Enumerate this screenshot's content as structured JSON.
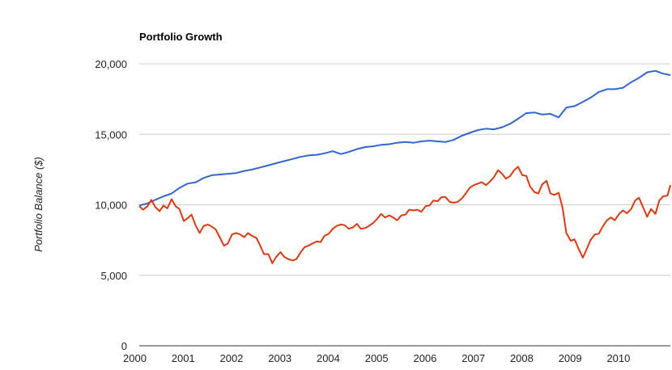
{
  "chart_data": {
    "type": "line",
    "title": "Portfolio Growth",
    "xlabel": "",
    "ylabel": "Portfolio Balance ($)",
    "ylim": [
      0,
      20000
    ],
    "yticks": [
      0,
      5000,
      10000,
      15000,
      20000
    ],
    "ytick_labels": [
      "0",
      "5,000",
      "10,000",
      "15,000",
      "20,000"
    ],
    "xticks": [
      2000,
      2001,
      2002,
      2003,
      2004,
      2005,
      2006,
      2007,
      2008,
      2009,
      2010
    ],
    "xtick_labels": [
      "2000",
      "2001",
      "2002",
      "2003",
      "2004",
      "2005",
      "2006",
      "2007",
      "2008",
      "2009",
      "2010"
    ],
    "xlim": [
      2000,
      2010.98
    ],
    "grid": true,
    "legend": "none",
    "series": [
      {
        "name": "Blue series",
        "color": "#3366cc",
        "x": [
          2000.0,
          2000.17,
          2000.33,
          2000.5,
          2000.67,
          2000.83,
          2001.0,
          2001.17,
          2001.33,
          2001.5,
          2001.67,
          2001.83,
          2002.0,
          2002.17,
          2002.33,
          2002.5,
          2002.67,
          2002.83,
          2003.0,
          2003.17,
          2003.33,
          2003.5,
          2003.67,
          2003.83,
          2004.0,
          2004.17,
          2004.33,
          2004.5,
          2004.67,
          2004.83,
          2005.0,
          2005.17,
          2005.33,
          2005.5,
          2005.67,
          2005.83,
          2006.0,
          2006.17,
          2006.33,
          2006.5,
          2006.67,
          2006.83,
          2007.0,
          2007.17,
          2007.33,
          2007.5,
          2007.67,
          2007.83,
          2008.0,
          2008.17,
          2008.33,
          2008.5,
          2008.67,
          2008.83,
          2009.0,
          2009.17,
          2009.33,
          2009.5,
          2009.67,
          2009.83,
          2010.0,
          2010.17,
          2010.33,
          2010.5,
          2010.67,
          2010.83,
          2010.98
        ],
        "values": [
          9950,
          10100,
          10350,
          10600,
          10800,
          11200,
          11500,
          11600,
          11900,
          12100,
          12150,
          12200,
          12250,
          12400,
          12500,
          12650,
          12800,
          12950,
          13100,
          13250,
          13400,
          13500,
          13550,
          13650,
          13800,
          13600,
          13750,
          13950,
          14100,
          14150,
          14250,
          14300,
          14400,
          14450,
          14400,
          14500,
          14550,
          14500,
          14450,
          14600,
          14900,
          15100,
          15300,
          15400,
          15350,
          15500,
          15750,
          16100,
          16500,
          16550,
          16400,
          16450,
          16200,
          16900,
          17000,
          17300,
          17600,
          18000,
          18200,
          18200,
          18300,
          18700,
          19000,
          19400,
          19500,
          19300,
          19200
        ]
      },
      {
        "name": "Red series",
        "color": "#dc3912",
        "x": [
          2000.0,
          2000.08,
          2000.17,
          2000.25,
          2000.33,
          2000.42,
          2000.5,
          2000.58,
          2000.67,
          2000.75,
          2000.83,
          2000.92,
          2001.0,
          2001.08,
          2001.17,
          2001.25,
          2001.33,
          2001.42,
          2001.5,
          2001.58,
          2001.67,
          2001.75,
          2001.83,
          2001.92,
          2002.0,
          2002.08,
          2002.17,
          2002.25,
          2002.33,
          2002.42,
          2002.5,
          2002.58,
          2002.67,
          2002.75,
          2002.83,
          2002.92,
          2003.0,
          2003.08,
          2003.17,
          2003.25,
          2003.33,
          2003.42,
          2003.5,
          2003.58,
          2003.67,
          2003.75,
          2003.83,
          2003.92,
          2004.0,
          2004.08,
          2004.17,
          2004.25,
          2004.33,
          2004.42,
          2004.5,
          2004.58,
          2004.67,
          2004.75,
          2004.83,
          2004.92,
          2005.0,
          2005.08,
          2005.17,
          2005.25,
          2005.33,
          2005.42,
          2005.5,
          2005.58,
          2005.67,
          2005.75,
          2005.83,
          2005.92,
          2006.0,
          2006.08,
          2006.17,
          2006.25,
          2006.33,
          2006.42,
          2006.5,
          2006.58,
          2006.67,
          2006.75,
          2006.83,
          2006.92,
          2007.0,
          2007.08,
          2007.17,
          2007.25,
          2007.33,
          2007.42,
          2007.5,
          2007.58,
          2007.67,
          2007.75,
          2007.83,
          2007.92,
          2008.0,
          2008.08,
          2008.17,
          2008.25,
          2008.33,
          2008.42,
          2008.5,
          2008.58,
          2008.67,
          2008.75,
          2008.83,
          2008.92,
          2009.0,
          2009.08,
          2009.17,
          2009.25,
          2009.33,
          2009.42,
          2009.5,
          2009.58,
          2009.67,
          2009.75,
          2009.83,
          2009.92,
          2010.0,
          2010.08,
          2010.17,
          2010.25,
          2010.33,
          2010.42,
          2010.5,
          2010.58,
          2010.67,
          2010.75,
          2010.83,
          2010.92,
          2010.98
        ],
        "values": [
          9900,
          9650,
          9900,
          10350,
          9850,
          9550,
          9950,
          9750,
          10400,
          9900,
          9700,
          8850,
          9050,
          9300,
          8500,
          8000,
          8500,
          8600,
          8450,
          8250,
          7650,
          7100,
          7250,
          7900,
          8000,
          7900,
          7700,
          8000,
          7800,
          7650,
          7100,
          6500,
          6500,
          5850,
          6300,
          6650,
          6300,
          6150,
          6050,
          6150,
          6600,
          7000,
          7100,
          7250,
          7400,
          7350,
          7800,
          7950,
          8300,
          8500,
          8600,
          8550,
          8300,
          8400,
          8650,
          8300,
          8350,
          8500,
          8700,
          9000,
          9350,
          9100,
          9250,
          9100,
          8900,
          9250,
          9300,
          9650,
          9600,
          9650,
          9500,
          9900,
          9950,
          10300,
          10250,
          10550,
          10550,
          10200,
          10150,
          10200,
          10450,
          10800,
          11200,
          11400,
          11500,
          11600,
          11400,
          11650,
          11950,
          12450,
          12200,
          11850,
          12050,
          12450,
          12700,
          12100,
          12050,
          11300,
          10900,
          10800,
          11450,
          11700,
          10800,
          10700,
          10850,
          9800,
          8000,
          7450,
          7550,
          6900,
          6250,
          6850,
          7500,
          7900,
          7950,
          8450,
          8900,
          9100,
          8900,
          9350,
          9600,
          9400,
          9700,
          10300,
          10500,
          9800,
          9150,
          9700,
          9350,
          10300,
          10600,
          10650,
          11400
        ]
      }
    ]
  }
}
